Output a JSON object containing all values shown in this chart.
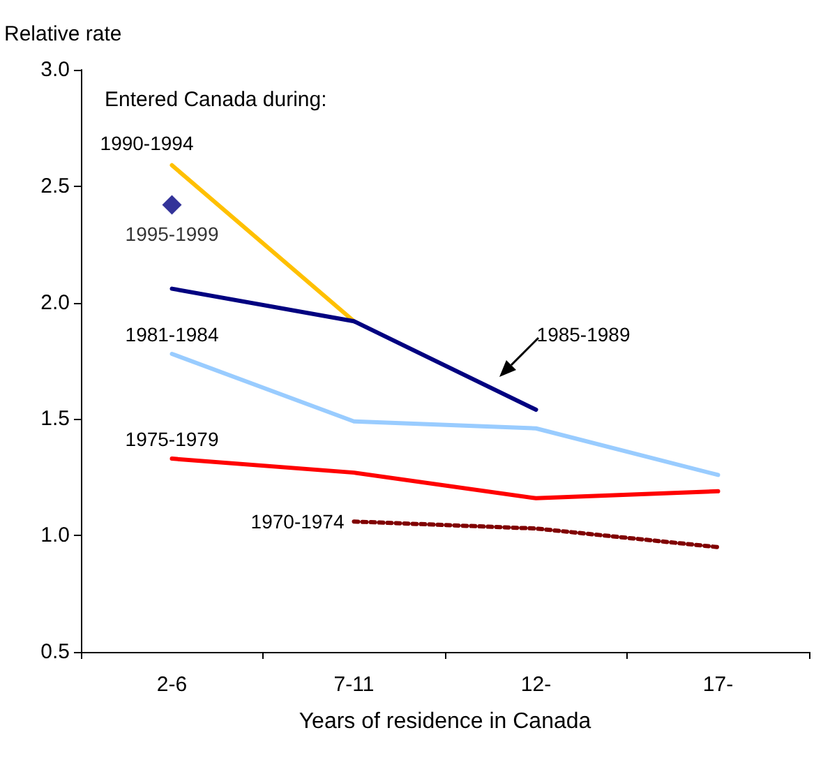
{
  "chart_data": {
    "type": "line",
    "ylabel": "Relative rate",
    "xlabel": "Years of residence in Canada",
    "legend_title": "Entered Canada during:",
    "categories": [
      "2-6",
      "7-11",
      "12-",
      "17-"
    ],
    "ylim": [
      0.5,
      3.0
    ],
    "yticks": [
      {
        "value": 0.5,
        "label": "0.5"
      },
      {
        "value": 1,
        "label": "1.0"
      },
      {
        "value": 1.5,
        "label": "1.5"
      },
      {
        "value": 2,
        "label": "2.0"
      },
      {
        "value": 2.5,
        "label": "2.5"
      },
      {
        "value": 3,
        "label": "3.0"
      }
    ],
    "grid": false,
    "legend": false,
    "marker": "none",
    "line_style": "solid",
    "series": [
      {
        "name": "1990-1994",
        "color": "#ffc000",
        "values": [
          2.59,
          1.92,
          null,
          null
        ]
      },
      {
        "name": "1995-1999",
        "color": "#000080",
        "type": "scatter",
        "marker": "diamond",
        "values": [
          2.42,
          null,
          null,
          null
        ]
      },
      {
        "name": "1985-1989",
        "color": "#000080",
        "values": [
          2.06,
          1.92,
          1.54,
          null
        ]
      },
      {
        "name": "1981-1984",
        "color": "#99ccff",
        "values": [
          1.78,
          1.49,
          1.46,
          1.26
        ]
      },
      {
        "name": "1975-1979",
        "color": "#ff0000",
        "values": [
          1.33,
          1.27,
          1.16,
          1.19
        ]
      },
      {
        "name": "1970-1974",
        "color": "#800000",
        "line_style": "dotted",
        "values": [
          null,
          1.06,
          1.03,
          0.95
        ]
      }
    ]
  }
}
